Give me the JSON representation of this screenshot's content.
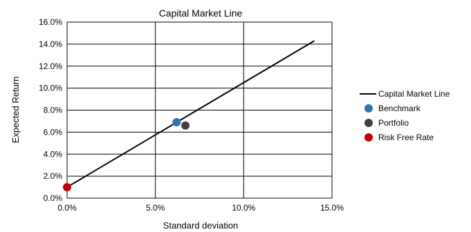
{
  "colors": {
    "line": "#000000",
    "grid": "#000000",
    "benchmark": "#2e75b6",
    "portfolio": "#404040",
    "risk_free": "#c00000"
  },
  "chart_data": {
    "type": "scatter",
    "title": "Capital Market Line",
    "xlabel": "Standard deviation",
    "ylabel": "Expected Return",
    "xlim": [
      0,
      15
    ],
    "ylim": [
      0,
      16
    ],
    "x_ticks": [
      0,
      5,
      10,
      15
    ],
    "x_tick_labels": [
      "0.0%",
      "5.0%",
      "10.0%",
      "15.0%"
    ],
    "y_ticks": [
      0,
      2,
      4,
      6,
      8,
      10,
      12,
      14,
      16
    ],
    "y_tick_labels": [
      "0.0%",
      "2.0%",
      "4.0%",
      "6.0%",
      "8.0%",
      "10.0%",
      "12.0%",
      "14.0%",
      "16.0%"
    ],
    "grid": "both",
    "legend_position": "right",
    "series": [
      {
        "name": "Capital Market Line",
        "kind": "line",
        "color": "#000000",
        "points": [
          {
            "x": 0,
            "y": 1.0
          },
          {
            "x": 14.0,
            "y": 14.3
          }
        ]
      },
      {
        "name": "Benchmark",
        "kind": "point",
        "color": "#2e75b6",
        "points": [
          {
            "x": 6.2,
            "y": 6.9
          }
        ]
      },
      {
        "name": "Portfolio",
        "kind": "point",
        "color": "#404040",
        "points": [
          {
            "x": 6.7,
            "y": 6.6
          }
        ]
      },
      {
        "name": "Risk Free Rate",
        "kind": "point",
        "color": "#c00000",
        "points": [
          {
            "x": 0,
            "y": 1.0
          }
        ]
      }
    ]
  }
}
